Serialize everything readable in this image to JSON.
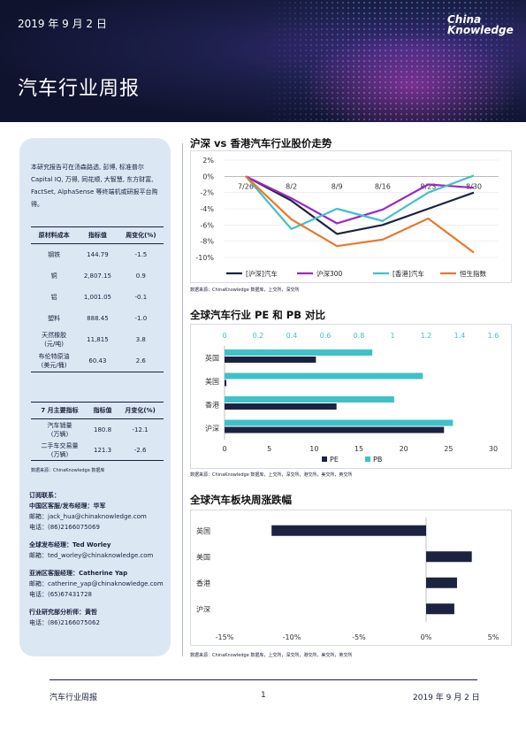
{
  "header": {
    "date": "2019 年 9 月 2 日",
    "title": "汽车行业周报",
    "logo_line1": "China",
    "logo_line2": "Knowledge"
  },
  "sidebar": {
    "intro": "本研究报告可在汤森路透, 彭博, 标准普尔 Capital IQ, 万得, 同花顺, 大智慧, 东方财富, FactSet, AlphaSense 等终端机或研报平台购得。",
    "materials": {
      "headers": [
        "原材料成本",
        "指标值",
        "周变化(%)"
      ],
      "rows": [
        {
          "name": "钢铁",
          "value": "144.79",
          "change": "-1.5"
        },
        {
          "name": "铜",
          "value": "2,807.15",
          "change": "0.9"
        },
        {
          "name": "铝",
          "value": "1,001.05",
          "change": "-0.1"
        },
        {
          "name": "塑料",
          "value": "888.45",
          "change": "-1.0"
        },
        {
          "name": "天然橡胶\n(元/吨)",
          "value": "11,815",
          "change": "3.8"
        },
        {
          "name": "布伦特原油\n(美元/桶)",
          "value": "60.43",
          "change": "2.6"
        }
      ]
    },
    "indicators": {
      "headers": [
        "7 月主要指标",
        "指标值",
        "月变化(%)"
      ],
      "rows": [
        {
          "name": "汽车销量\n(万辆)",
          "value": "180.8",
          "change": "-12.1"
        },
        {
          "name": "二手车交易量\n(万辆)",
          "value": "121.3",
          "change": "-2.6"
        }
      ]
    },
    "source": "数据来源：ChinaKnowledge 数据库",
    "contacts": [
      {
        "heading": "订阅联系：",
        "lines": []
      },
      {
        "heading": "中国区客服/发布经理：华军",
        "lines": [
          "邮箱：jack_hua@chinaknowledge.com",
          "电话：(86)2166075069"
        ]
      },
      {
        "heading": "全球发布经理：Ted Worley",
        "lines": [
          "邮箱：ted_worley@chinaknowledge.com"
        ]
      },
      {
        "heading": "亚洲区客服经理：Catherine Yap",
        "lines": [
          "邮箱：catherine_yap@chinaknowledge.com",
          "电话：(65)67431728"
        ]
      },
      {
        "heading": "行业研究部分析师：黄哲",
        "lines": [
          "电话：(86)2166075062"
        ]
      }
    ]
  },
  "sections": {
    "chart1_title": "沪深 vs 香港汽车行业股价走势",
    "chart1_source": "数据来源：ChinaKnowledge 数据库，上交所，深交所",
    "chart2_title": "全球汽车行业 PE 和 PB 对比",
    "chart2_source": "数据来源：ChinaKnowledge 数据库，上交所，深交所，港交所，美交所，英交所",
    "chart3_title": "全球汽车板块周涨跌幅",
    "chart3_source": "数据来源：ChinaKnowledge 数据库，上交所，深交所，港交所，美交所，英交所"
  },
  "chart_data": [
    {
      "type": "line",
      "title": "沪深 vs 香港汽车行业股价走势",
      "x": [
        "7/26",
        "8/2",
        "8/9",
        "8/16",
        "8/23",
        "8/30"
      ],
      "ylim": [
        -10,
        2
      ],
      "yticks": [
        "2%",
        "0%",
        "-2%",
        "-4%",
        "-6%",
        "-8%",
        "-10%"
      ],
      "series": [
        {
          "name": "[沪深]汽车",
          "color": "#1c2340",
          "values": [
            0,
            -3.0,
            -7.1,
            -6.0,
            -4.0,
            -2.0
          ]
        },
        {
          "name": "沪深300",
          "color": "#9b27c4",
          "values": [
            0,
            -2.7,
            -5.8,
            -4.1,
            -1.0,
            -1.4
          ]
        },
        {
          "name": "[香港]汽车",
          "color": "#3fc1c9",
          "values": [
            0,
            -6.5,
            -4.0,
            -5.5,
            -2.0,
            0.1
          ]
        },
        {
          "name": "恒生指数",
          "color": "#e8782a",
          "values": [
            0,
            -5.3,
            -8.6,
            -7.8,
            -5.2,
            -9.4
          ]
        }
      ]
    },
    {
      "type": "bar",
      "title": "全球汽车行业 PE 和 PB 对比",
      "categories": [
        "英国",
        "美国",
        "香港",
        "沪深"
      ],
      "pe_axis": [
        0,
        30
      ],
      "pb_axis": [
        0,
        1.6
      ],
      "pe_ticks": [
        "0",
        "5",
        "10",
        "15",
        "20",
        "25",
        "30"
      ],
      "pb_ticks": [
        "0",
        "0.2",
        "0.4",
        "0.6",
        "0.8",
        "1",
        "1.2",
        "1.4",
        "1.6"
      ],
      "series": [
        {
          "name": "PE",
          "color": "#1c2340",
          "axis": "pe",
          "values": [
            10.2,
            0.2,
            12.5,
            24.5
          ]
        },
        {
          "name": "PB",
          "color": "#3fc1c9",
          "axis": "pb",
          "values": [
            0.88,
            1.18,
            1.01,
            1.36
          ]
        }
      ]
    },
    {
      "type": "bar",
      "title": "全球汽车板块周涨跌幅",
      "categories": [
        "英国",
        "美国",
        "香港",
        "沪深"
      ],
      "xlim": [
        -15,
        5
      ],
      "xticks": [
        "-15%",
        "-10%",
        "-5%",
        "0%",
        "5%"
      ],
      "series": [
        {
          "color": "#1c2340",
          "values": [
            -11.5,
            3.4,
            2.3,
            2.1
          ]
        }
      ]
    }
  ],
  "footer": {
    "left": "汽车行业周报",
    "page": "1",
    "right": "2019 年 9 月 2 日"
  }
}
